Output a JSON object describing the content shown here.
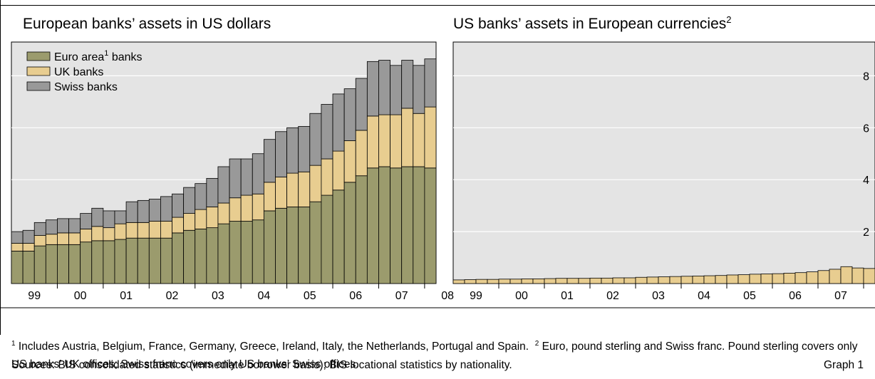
{
  "chart_data": [
    {
      "type": "bar",
      "stacked": true,
      "title": "European banks’ assets in US dollars",
      "title_sup": "",
      "x_tick_labels": [
        "99",
        "00",
        "01",
        "02",
        "03",
        "04",
        "05",
        "06",
        "07",
        "08"
      ],
      "x_start": "1999-Q1",
      "x_end": "2008-Q2",
      "ylim": [
        0,
        9.3
      ],
      "y_ticks": [
        0,
        2,
        4,
        6,
        8
      ],
      "grid": true,
      "legend_position": "top-left",
      "series": [
        {
          "name": "Euro area banks",
          "name_base": "Euro area",
          "name_sup": "1",
          "name_rest": " banks",
          "color": "#9b9b6d",
          "values": [
            1.25,
            1.25,
            1.45,
            1.5,
            1.5,
            1.5,
            1.6,
            1.65,
            1.65,
            1.7,
            1.75,
            1.75,
            1.75,
            1.75,
            1.95,
            2.05,
            2.1,
            2.15,
            2.3,
            2.4,
            2.4,
            2.45,
            2.8,
            2.9,
            2.95,
            2.95,
            3.15,
            3.4,
            3.6,
            3.9,
            4.15,
            4.45,
            4.5,
            4.45,
            4.5,
            4.5,
            4.45
          ]
        },
        {
          "name": "UK banks",
          "color": "#e8cd90",
          "values": [
            0.3,
            0.3,
            0.4,
            0.4,
            0.45,
            0.45,
            0.5,
            0.55,
            0.5,
            0.6,
            0.6,
            0.6,
            0.65,
            0.65,
            0.6,
            0.65,
            0.75,
            0.8,
            0.8,
            0.9,
            1.0,
            1.0,
            1.1,
            1.2,
            1.3,
            1.35,
            1.4,
            1.4,
            1.5,
            1.6,
            1.75,
            2.0,
            2.0,
            2.05,
            2.25,
            2.05,
            2.35
          ]
        },
        {
          "name": "Swiss banks",
          "color": "#999999",
          "values": [
            0.45,
            0.5,
            0.5,
            0.55,
            0.55,
            0.55,
            0.6,
            0.7,
            0.65,
            0.5,
            0.8,
            0.85,
            0.85,
            0.95,
            0.9,
            1.0,
            1.0,
            1.1,
            1.4,
            1.5,
            1.4,
            1.55,
            1.65,
            1.75,
            1.75,
            1.75,
            2.0,
            2.1,
            2.2,
            2.0,
            2.0,
            2.1,
            2.1,
            1.9,
            1.85,
            1.85,
            1.85
          ]
        }
      ]
    },
    {
      "type": "bar",
      "title": "US banks’ assets in European currencies",
      "title_sup": "2",
      "x_tick_labels": [
        "99",
        "00",
        "01",
        "02",
        "03",
        "04",
        "05",
        "06",
        "07",
        "08"
      ],
      "x_start": "1999-Q1",
      "x_end": "2008-Q2",
      "ylim": [
        0,
        9.3
      ],
      "y_ticks": [
        0,
        2,
        4,
        6,
        8
      ],
      "grid": true,
      "series": [
        {
          "color": "#e8cd90",
          "values": [
            0.14,
            0.15,
            0.16,
            0.16,
            0.17,
            0.17,
            0.18,
            0.18,
            0.19,
            0.2,
            0.2,
            0.2,
            0.21,
            0.21,
            0.22,
            0.22,
            0.24,
            0.25,
            0.26,
            0.27,
            0.28,
            0.29,
            0.3,
            0.31,
            0.33,
            0.34,
            0.36,
            0.37,
            0.38,
            0.4,
            0.42,
            0.45,
            0.5,
            0.55,
            0.65,
            0.6,
            0.58
          ]
        }
      ]
    }
  ],
  "footnotes": {
    "fn1_sup": "1",
    "fn1_text": " Includes Austria, Belgium, France, Germany, Greece, Ireland, Italy, the Netherlands, Portugal and Spain.",
    "fn2_sup": "2",
    "fn2_text": " Euro, pound sterling and Swiss franc. Pound sterling covers only US banks’ UK offices; Swiss franc covers only US banks’ Swiss offices."
  },
  "sources": "Sources: BIS consolidated statistics (immediate borrower basis); BIS locational statistics by nationality.",
  "graph_label": "Graph 1"
}
